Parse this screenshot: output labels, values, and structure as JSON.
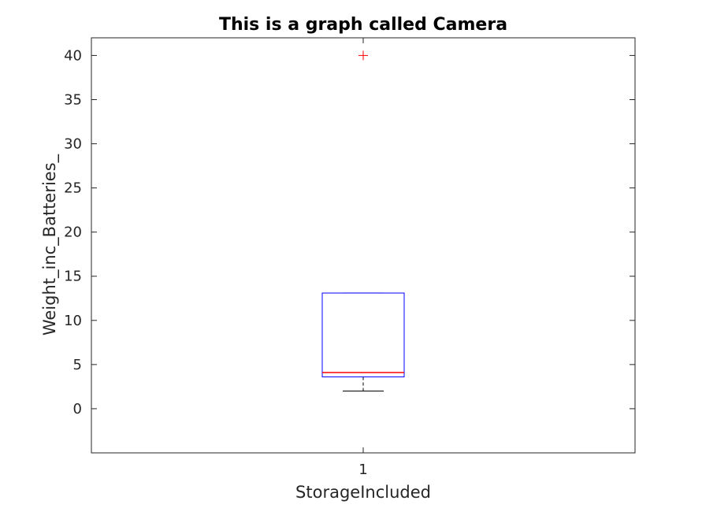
{
  "chart_data": {
    "type": "boxplot",
    "title": "This is a graph called Camera",
    "xlabel": "StorageIncluded",
    "ylabel": "Weight_inc_Batteries_",
    "categories": [
      "1"
    ],
    "ylim": [
      -5,
      42
    ],
    "yticks": [
      0,
      5,
      10,
      15,
      20,
      25,
      30,
      35,
      40
    ],
    "grid": false,
    "boxes": [
      {
        "category": "1",
        "whisker_low": 2,
        "q1": 3.6,
        "median": 4.1,
        "q3": 13.1,
        "whisker_high": 13.1,
        "outliers": [
          40
        ]
      }
    ],
    "colors": {
      "box": "#0000ff",
      "median": "#ff0000",
      "whisker": "#000000",
      "outlier": "#ff0000",
      "axes": "#262626"
    }
  }
}
